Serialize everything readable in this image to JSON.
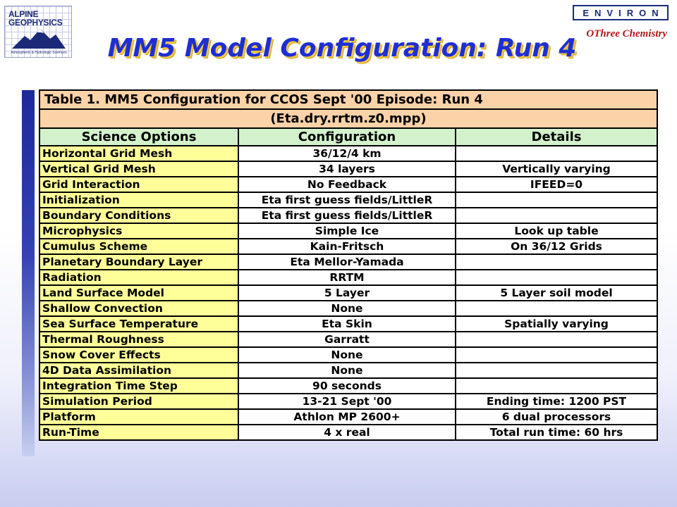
{
  "logos": {
    "left_name": [
      "ALPINE",
      "GEOPHYSICS"
    ],
    "left_subtitle": "Atmospheric & Hydrologic Sciences",
    "right_name": "ENVIRON",
    "right_tagline": "OThree Chemistry",
    "colors": {
      "navy": "#1b2a78",
      "red": "#b01818"
    }
  },
  "title": "MM5 Model Configuration: Run 4",
  "table": {
    "caption_line1": "Table 1.  MM5 Configuration for CCOS Sept '00 Episode: Run 4",
    "caption_line2": "(Eta.dry.rrtm.z0.mpp)",
    "headers": [
      "Science Options",
      "Configuration",
      "Details"
    ],
    "rows": [
      [
        "Horizontal Grid Mesh",
        "36/12/4 km",
        ""
      ],
      [
        "Vertical Grid Mesh",
        "34 layers",
        "Vertically varying"
      ],
      [
        "Grid Interaction",
        "No Feedback",
        "IFEED=0"
      ],
      [
        "Initialization",
        "Eta first guess fields/LittleR",
        ""
      ],
      [
        "Boundary Conditions",
        "Eta first guess fields/LittleR",
        ""
      ],
      [
        "Microphysics",
        "Simple Ice",
        "Look up table"
      ],
      [
        "Cumulus Scheme",
        "Kain-Fritsch",
        "On 36/12 Grids"
      ],
      [
        "Planetary Boundary Layer",
        "Eta Mellor-Yamada",
        ""
      ],
      [
        "Radiation",
        "RRTM",
        ""
      ],
      [
        "Land Surface Model",
        "5 Layer",
        "5 Layer soil model"
      ],
      [
        "Shallow Convection",
        "None",
        ""
      ],
      [
        "Sea Surface Temperature",
        "Eta Skin",
        "Spatially varying"
      ],
      [
        "Thermal Roughness",
        "Garratt",
        ""
      ],
      [
        "Snow Cover Effects",
        "None",
        ""
      ],
      [
        "4D Data Assimilation",
        "None",
        ""
      ],
      [
        "Integration Time Step",
        "90 seconds",
        ""
      ],
      [
        "Simulation Period",
        "13-21 Sept '00",
        "Ending time: 1200 PST"
      ],
      [
        "Platform",
        "Athlon MP 2600+",
        "6 dual processors"
      ],
      [
        "Run-Time",
        "4 x real",
        "Total run time: 60 hrs"
      ]
    ],
    "colors": {
      "caption_bg": "#fcd2a8",
      "header_bg": "#d3f2cc",
      "option_bg": "#ffff99"
    }
  }
}
